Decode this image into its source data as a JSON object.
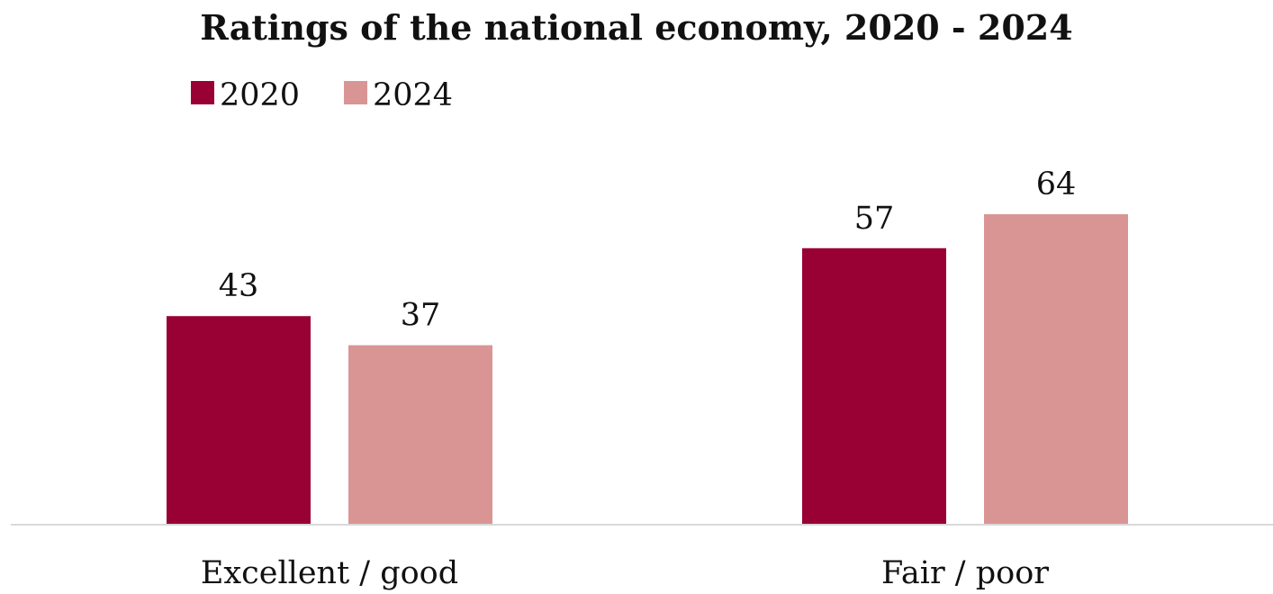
{
  "chart_data": {
    "type": "bar",
    "title": "Ratings of the national economy, 2020 - 2024",
    "categories": [
      "Excellent / good",
      "Fair  / poor"
    ],
    "series": [
      {
        "name": "2020",
        "values": [
          43,
          57
        ],
        "color": "#990033"
      },
      {
        "name": "2024",
        "values": [
          37,
          64
        ],
        "color": "#D99594"
      }
    ],
    "ylim": [
      0,
      100
    ],
    "grid": false,
    "legend_position": "top-left",
    "data_labels": true,
    "baseline_color": "#D9D9D9"
  }
}
